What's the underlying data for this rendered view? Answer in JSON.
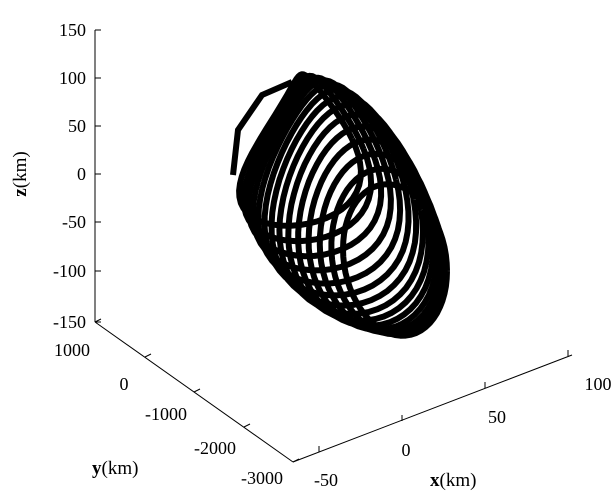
{
  "chart_data": {
    "type": "line",
    "projection": "3d",
    "title": "",
    "grid": false,
    "line_color": "#000000",
    "axes": {
      "x": {
        "symbol": "x",
        "unit": "(km)",
        "range": [
          -50,
          100
        ],
        "ticks": [
          -50,
          0,
          50,
          100
        ]
      },
      "y": {
        "symbol": "y",
        "unit": "(km)",
        "range": [
          -3000,
          1000
        ],
        "ticks": [
          -3000,
          -2000,
          -1000,
          0,
          1000
        ]
      },
      "z": {
        "symbol": "z",
        "unit": "(km)",
        "range": [
          -150,
          150
        ],
        "ticks": [
          -150,
          -100,
          -50,
          0,
          50,
          100,
          150
        ]
      }
    },
    "series": [
      {
        "description_free": true,
        "curve": "helical relative trajectory of coils stacked along y with twisted x-z loops",
        "points": [
          {
            "x": 0,
            "y": -200,
            "z": 0
          },
          {
            "x": -15,
            "y": -420,
            "z": 60
          },
          {
            "x": 12,
            "y": -700,
            "z": 95
          },
          {
            "x": 55,
            "y": -1000,
            "z": 55
          },
          {
            "x": 75,
            "y": -1300,
            "z": -10
          },
          {
            "x": 60,
            "y": -1600,
            "z": -80
          },
          {
            "x": 20,
            "y": -1900,
            "z": -125
          },
          {
            "x": -10,
            "y": -2200,
            "z": -90
          },
          {
            "x": -25,
            "y": -2500,
            "z": -20
          }
        ]
      }
    ]
  }
}
